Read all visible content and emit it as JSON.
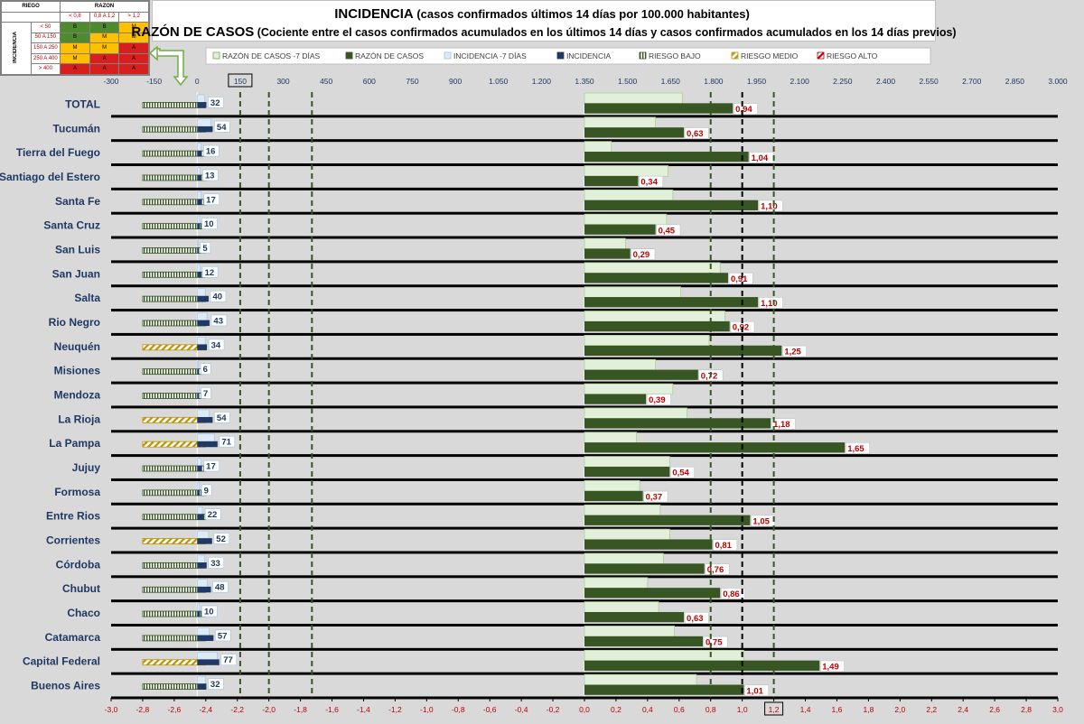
{
  "riesgo_table": {
    "corner": "RIEGO",
    "razon_header": "RAZON",
    "razon_cols": [
      "< 0,8",
      "0,8 A 1,2",
      "> 1,2"
    ],
    "incidencia_label": "INCIDENCIA",
    "rows": [
      {
        "label": "< 50",
        "cells": [
          "B",
          "B",
          "M"
        ]
      },
      {
        "label": "50 A 150",
        "cells": [
          "B",
          "M",
          "M"
        ]
      },
      {
        "label": "150 A 250",
        "cells": [
          "M",
          "M",
          "A"
        ]
      },
      {
        "label": "250 A 400",
        "cells": [
          "M",
          "A",
          "A"
        ]
      },
      {
        "label": "> 400",
        "cells": [
          "A",
          "A",
          "A"
        ]
      }
    ],
    "colors": {
      "B": "#4f8a2c",
      "M": "#ffc000",
      "A": "#d62020"
    }
  },
  "header": {
    "title1_bold": "INCIDENCIA",
    "title1_rest": " (casos confirmados últimos 14 días por 100.000 habitantes)",
    "title2_bold": "RAZÓN DE CASOS",
    "title2_rest": " (Cociente entre el casos confirmados acumulados en los últimos 14 días y casos confirmados acumulados en los 14 días previos)"
  },
  "chart_data": {
    "type": "bar",
    "legend": [
      {
        "name": "RAZÓN DE CASOS -7 DÍAS",
        "color": "#e2efda",
        "style": "solid"
      },
      {
        "name": "RAZÓN DE CASOS",
        "color": "#375623",
        "style": "solid"
      },
      {
        "name": "INCIDENCIA -7 DÍAS",
        "color": "#ddebf7",
        "style": "solid"
      },
      {
        "name": "INCIDENCIA",
        "color": "#1f3864",
        "style": "solid"
      },
      {
        "name": "RIESGO BAJO",
        "color": "#375623",
        "style": "hatch"
      },
      {
        "name": "RIESGO MEDIO",
        "color": "#bf9000",
        "style": "hatch"
      },
      {
        "name": "RIESGO ALTO",
        "color": "#c00000",
        "style": "hatch"
      }
    ],
    "legend_placement": "top",
    "top_axis": {
      "min": -300,
      "max": 3000,
      "ticks": [
        "-300",
        "-150",
        "0",
        "150",
        "300",
        "450",
        "600",
        "750",
        "900",
        "1.050",
        "1.200",
        "1.350",
        "1.500",
        "1.650",
        "1.800",
        "1.950",
        "2.100",
        "2.250",
        "2.400",
        "2.550",
        "2.700",
        "2.850",
        "3.000"
      ],
      "boxed_tick": "150"
    },
    "bottom_axis": {
      "min": -3.0,
      "max": 3.0,
      "ticks": [
        "-3,0",
        "-2,8",
        "-2,6",
        "-2,4",
        "-2,2",
        "-2,0",
        "-1,8",
        "-1,6",
        "-1,4",
        "-1,2",
        "-1,0",
        "-0,8",
        "-0,6",
        "-0,4",
        "-0,2",
        "0,0",
        "0,2",
        "0,4",
        "0,6",
        "0,8",
        "1,0",
        "1,2",
        "1,4",
        "1,6",
        "1,8",
        "2,0",
        "2,2",
        "2,4",
        "2,6",
        "2,8",
        "3,0"
      ],
      "boxed_tick": "1,2"
    },
    "reference_lines": {
      "incidence": [
        150,
        250,
        400
      ],
      "ratio": [
        0.8,
        1.0,
        1.2
      ]
    },
    "categories": [
      "TOTAL",
      "Tucumán",
      "Tierra del Fuego",
      "Santiago del Estero",
      "Santa Fe",
      "Santa Cruz",
      "San Luis",
      "San Juan",
      "Salta",
      "Rio Negro",
      "Neuquén",
      "Misiones",
      "Mendoza",
      "La Rioja",
      "La Pampa",
      "Jujuy",
      "Formosa",
      "Entre Rios",
      "Corrientes",
      "Córdoba",
      "Chubut",
      "Chaco",
      "Catamarca",
      "Capital Federal",
      "Buenos Aires"
    ],
    "series": [
      {
        "name": "INCIDENCIA",
        "values": [
          32,
          54,
          16,
          13,
          17,
          10,
          5,
          12,
          40,
          43,
          34,
          6,
          7,
          54,
          71,
          17,
          9,
          22,
          52,
          33,
          48,
          10,
          57,
          77,
          32
        ],
        "labels": [
          "32",
          "54",
          "16",
          "13",
          "17",
          "10",
          "5",
          "12",
          "40",
          "43",
          "34",
          "6",
          "7",
          "54",
          "71",
          "17",
          "9",
          "22",
          "52",
          "33",
          "48",
          "10",
          "57",
          "77",
          "32"
        ]
      },
      {
        "name": "INCIDENCIA -7 DÍAS",
        "values": [
          25,
          47,
          14,
          10,
          14,
          9,
          3,
          10,
          28,
          34,
          28,
          4,
          6,
          42,
          60,
          14,
          7,
          18,
          40,
          26,
          35,
          8,
          42,
          70,
          28
        ]
      },
      {
        "name": "RAZÓN DE CASOS",
        "values": [
          0.94,
          0.63,
          1.04,
          0.34,
          1.1,
          0.45,
          0.29,
          0.91,
          1.1,
          0.92,
          1.25,
          0.72,
          0.39,
          1.18,
          1.65,
          0.54,
          0.37,
          1.05,
          0.81,
          0.76,
          0.86,
          0.63,
          0.75,
          1.49,
          1.01
        ],
        "labels": [
          "0,94",
          "0,63",
          "1,04",
          "0,34",
          "1,10",
          "0,45",
          "0,29",
          "0,91",
          "1,10",
          "0,92",
          "1,25",
          "0,72",
          "0,39",
          "1,18",
          "1,65",
          "0,54",
          "0,37",
          "1,05",
          "0,81",
          "0,76",
          "0,86",
          "0,63",
          "0,75",
          "1,49",
          "1,01"
        ]
      },
      {
        "name": "RAZÓN DE CASOS -7 DÍAS",
        "values": [
          0.62,
          0.45,
          0.17,
          0.53,
          0.56,
          0.52,
          0.26,
          0.86,
          0.61,
          0.89,
          0.79,
          0.45,
          0.56,
          0.65,
          0.33,
          0.54,
          0.35,
          0.48,
          0.54,
          0.5,
          0.4,
          0.47,
          0.57,
          1.01,
          0.71
        ]
      }
    ],
    "risk": [
      "BAJO",
      "BAJO",
      "BAJO",
      "BAJO",
      "BAJO",
      "BAJO",
      "BAJO",
      "BAJO",
      "BAJO",
      "BAJO",
      "MEDIO",
      "BAJO",
      "BAJO",
      "MEDIO",
      "MEDIO",
      "BAJO",
      "BAJO",
      "BAJO",
      "MEDIO",
      "BAJO",
      "BAJO",
      "BAJO",
      "BAJO",
      "MEDIO",
      "BAJO"
    ],
    "risk_colors": {
      "BAJO": "#375623",
      "MEDIO": "#bf9000",
      "ALTO": "#c00000"
    },
    "grid": false
  }
}
